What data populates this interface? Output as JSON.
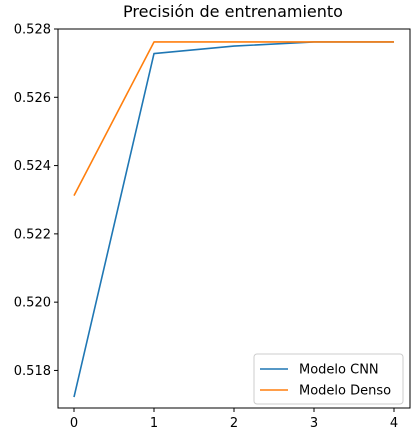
{
  "chart_data": {
    "type": "line",
    "title": "Precisión de entrenamiento",
    "xlabel": "",
    "ylabel": "",
    "x": [
      0,
      1,
      2,
      3,
      4
    ],
    "xlim": [
      -0.2,
      4.2
    ],
    "ylim": [
      0.5169,
      0.528
    ],
    "xticks": [
      0,
      1,
      2,
      3,
      4
    ],
    "xtick_labels": [
      "0",
      "1",
      "2",
      "3",
      "4"
    ],
    "yticks": [
      0.518,
      0.52,
      0.522,
      0.524,
      0.526,
      0.528
    ],
    "ytick_labels": [
      "0.518",
      "0.520",
      "0.522",
      "0.524",
      "0.526",
      "0.528"
    ],
    "grid": false,
    "legend_position": "lower-right",
    "series": [
      {
        "name": "Modelo CNN",
        "color": "#1f77b4",
        "values": [
          0.51722,
          0.52728,
          0.5275,
          0.52762,
          0.52762
        ]
      },
      {
        "name": "Modelo Denso",
        "color": "#ff7f0e",
        "values": [
          0.52312,
          0.52762,
          0.52762,
          0.52762,
          0.52762
        ]
      }
    ]
  }
}
